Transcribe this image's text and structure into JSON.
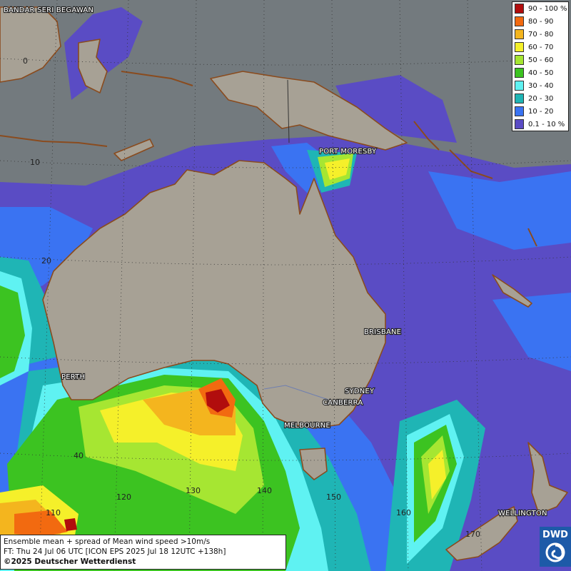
{
  "legend": [
    {
      "label": "90 - 100 %",
      "color": "#b10d0d"
    },
    {
      "label": "80 - 90",
      "color": "#f26a10"
    },
    {
      "label": "70 - 80",
      "color": "#f4b51e"
    },
    {
      "label": "60 - 70",
      "color": "#f5f02a"
    },
    {
      "label": "50 - 60",
      "color": "#a6e632"
    },
    {
      "label": "40 - 50",
      "color": "#3cc321"
    },
    {
      "label": "30 - 40",
      "color": "#5ff2f2"
    },
    {
      "label": "20 - 30",
      "color": "#1fb5b5"
    },
    {
      "label": "10 - 20",
      "color": "#3a73f2"
    },
    {
      "label": "0.1 - 10 %",
      "color": "#5a4cc4"
    }
  ],
  "cities": [
    "BANDAR SERI BEGAWAN",
    "PORT MORESBY",
    "BRISBANE",
    "PERTH",
    "SYDNEY",
    "CANBERRA",
    "MELBOURNE",
    "WELLINGTON"
  ],
  "lat_labels": [
    "0",
    "10",
    "20",
    "40"
  ],
  "lon_labels": [
    "110",
    "120",
    "130",
    "140",
    "150",
    "160",
    "170"
  ],
  "info": {
    "line1": "Ensemble mean + spread of Mean wind speed >10m/s",
    "line2": "FT: Thu 24 Jul 06 UTC [ICON EPS 2025 Jul 18 12UTC +138h]",
    "copyright": "©2025 Deutscher Wetterdienst"
  },
  "logo": "DWD"
}
